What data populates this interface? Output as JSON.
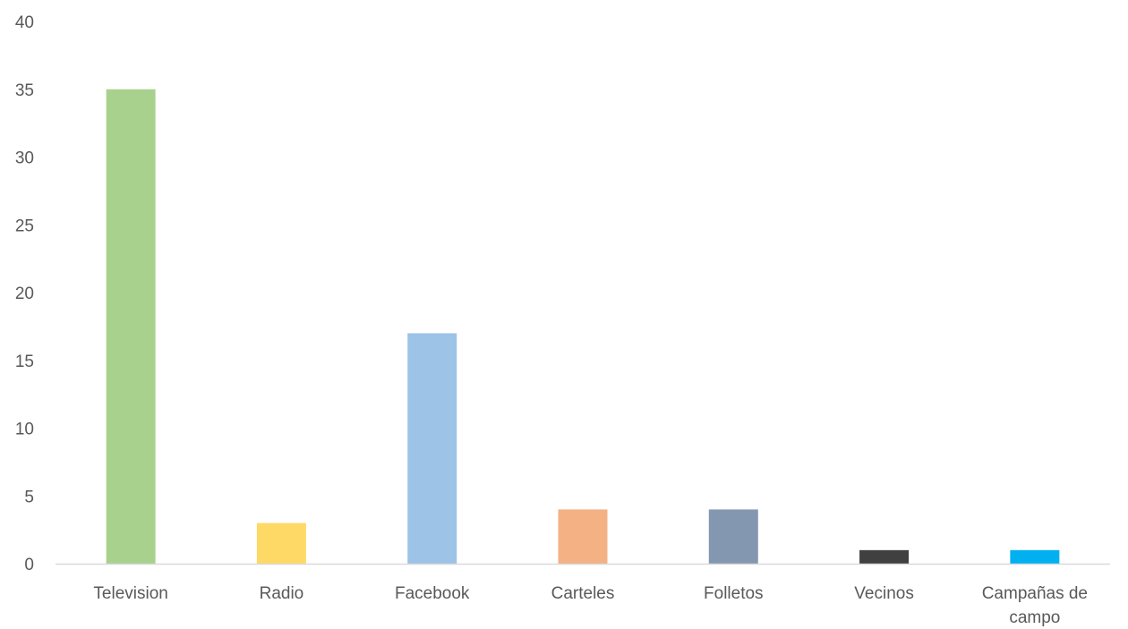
{
  "chart_data": {
    "type": "bar",
    "title": "",
    "xlabel": "",
    "ylabel": "",
    "categories": [
      "Television",
      "Radio",
      "Facebook",
      "Carteles",
      "Folletos",
      "Vecinos",
      "Campañas de campo"
    ],
    "category_label_lines": [
      [
        "Television"
      ],
      [
        "Radio"
      ],
      [
        "Facebook"
      ],
      [
        "Carteles"
      ],
      [
        "Folletos"
      ],
      [
        "Vecinos"
      ],
      [
        "Campañas de",
        "campo"
      ]
    ],
    "values": [
      35,
      3,
      17,
      4,
      4,
      1,
      1
    ],
    "bar_colors": [
      "#a9d18e",
      "#ffd966",
      "#9dc3e6",
      "#f4b183",
      "#8497b0",
      "#404040",
      "#00b0f0"
    ],
    "ylim": [
      0,
      40
    ],
    "yticks": [
      0,
      5,
      10,
      15,
      20,
      25,
      30,
      35,
      40
    ],
    "grid": false,
    "legend": "none",
    "axis_color": "#d9d9d9",
    "label_color": "#595959"
  }
}
